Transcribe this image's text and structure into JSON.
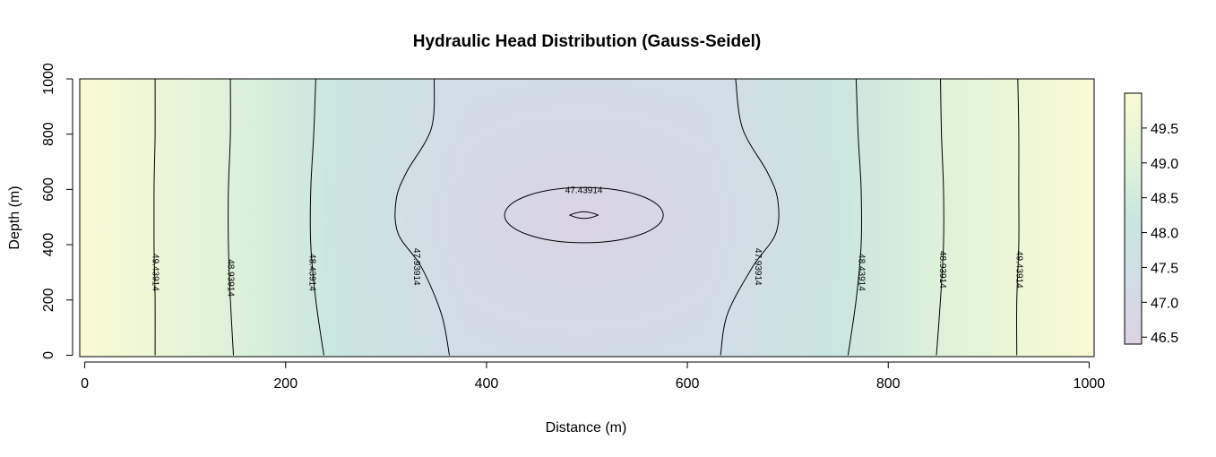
{
  "chart_data": {
    "type": "heatmap",
    "title": "Hydraulic Head Distribution (Gauss-Seidel)",
    "xlabel": "Distance (m)",
    "ylabel": "Depth (m)",
    "xlim": [
      -5,
      1005
    ],
    "ylim": [
      -5,
      1000
    ],
    "x_ticks": [
      0,
      200,
      400,
      600,
      800,
      1000
    ],
    "y_ticks": [
      0,
      200,
      400,
      600,
      800,
      1000
    ],
    "x_tick_labels": [
      "0",
      "200",
      "400",
      "600",
      "800",
      "1000"
    ],
    "y_tick_labels": [
      "0",
      "200",
      "400",
      "600",
      "800",
      "1000"
    ],
    "colorbar": {
      "range": [
        46.4,
        50.0
      ],
      "ticks": [
        46.5,
        47.0,
        47.5,
        48.0,
        48.5,
        49.0,
        49.5
      ],
      "tick_labels": [
        "46.5",
        "47.0",
        "47.5",
        "48.0",
        "48.5",
        "49.0",
        "49.5"
      ],
      "colors": [
        "#dcd2e2",
        "#d2dde6",
        "#c9e6e0",
        "#e2f4d8",
        "#fafad4"
      ]
    },
    "grid": false,
    "legend": "right",
    "contour_color": "#000000",
    "contours": [
      {
        "level": 49.43914,
        "label": "49.43914",
        "points": [
          [
            70,
            0
          ],
          [
            70,
            200
          ],
          [
            69,
            400
          ],
          [
            69,
            600
          ],
          [
            70,
            800
          ],
          [
            70,
            1000
          ]
        ],
        "label_at": [
          70,
          300
        ]
      },
      {
        "level": 48.93914,
        "label": "48.93914",
        "points": [
          [
            148,
            0
          ],
          [
            145,
            200
          ],
          [
            143,
            400
          ],
          [
            143,
            600
          ],
          [
            145,
            800
          ],
          [
            145,
            1000
          ]
        ],
        "label_at": [
          145,
          280
        ]
      },
      {
        "level": 48.43914,
        "label": "48.43914",
        "points": [
          [
            238,
            0
          ],
          [
            230,
            200
          ],
          [
            225,
            400
          ],
          [
            225,
            600
          ],
          [
            228,
            800
          ],
          [
            230,
            1000
          ]
        ],
        "label_at": [
          226,
          300
        ]
      },
      {
        "level": 47.93914,
        "label": "47.93914",
        "points": [
          [
            363,
            0
          ],
          [
            355,
            150
          ],
          [
            335,
            320
          ],
          [
            312,
            440
          ],
          [
            310,
            560
          ],
          [
            320,
            660
          ],
          [
            345,
            820
          ],
          [
            348,
            1000
          ]
        ],
        "label_at": [
          330,
          320
        ]
      },
      {
        "level": 47.93914,
        "label": "47.93914",
        "points": [
          [
            633,
            0
          ],
          [
            640,
            150
          ],
          [
            665,
            320
          ],
          [
            688,
            440
          ],
          [
            690,
            560
          ],
          [
            680,
            660
          ],
          [
            655,
            820
          ],
          [
            648,
            1000
          ]
        ],
        "label_at": [
          670,
          320
        ]
      },
      {
        "level": 48.43914,
        "label": "48.43914",
        "points": [
          [
            760,
            0
          ],
          [
            768,
            200
          ],
          [
            773,
            400
          ],
          [
            773,
            600
          ],
          [
            770,
            800
          ],
          [
            768,
            1000
          ]
        ],
        "label_at": [
          773,
          300
        ]
      },
      {
        "level": 48.93914,
        "label": "48.93914",
        "points": [
          [
            848,
            0
          ],
          [
            852,
            200
          ],
          [
            855,
            400
          ],
          [
            855,
            600
          ],
          [
            853,
            800
          ],
          [
            852,
            1000
          ]
        ],
        "label_at": [
          854,
          310
        ]
      },
      {
        "level": 49.43914,
        "label": "49.43914",
        "points": [
          [
            928,
            0
          ],
          [
            928,
            200
          ],
          [
            930,
            400
          ],
          [
            930,
            600
          ],
          [
            930,
            800
          ],
          [
            929,
            1000
          ]
        ],
        "label_at": [
          930,
          310
        ]
      }
    ],
    "ellipses": [
      {
        "level": 47.43914,
        "label": "47.43914",
        "cx": 497,
        "cy": 507,
        "rx": 79,
        "ry": 100,
        "label_at": [
          497,
          600
        ]
      },
      {
        "level": 46.93914,
        "label": "",
        "cx": 497,
        "cy": 507,
        "rx": 14,
        "ry": 15,
        "shape": "lens"
      }
    ]
  }
}
